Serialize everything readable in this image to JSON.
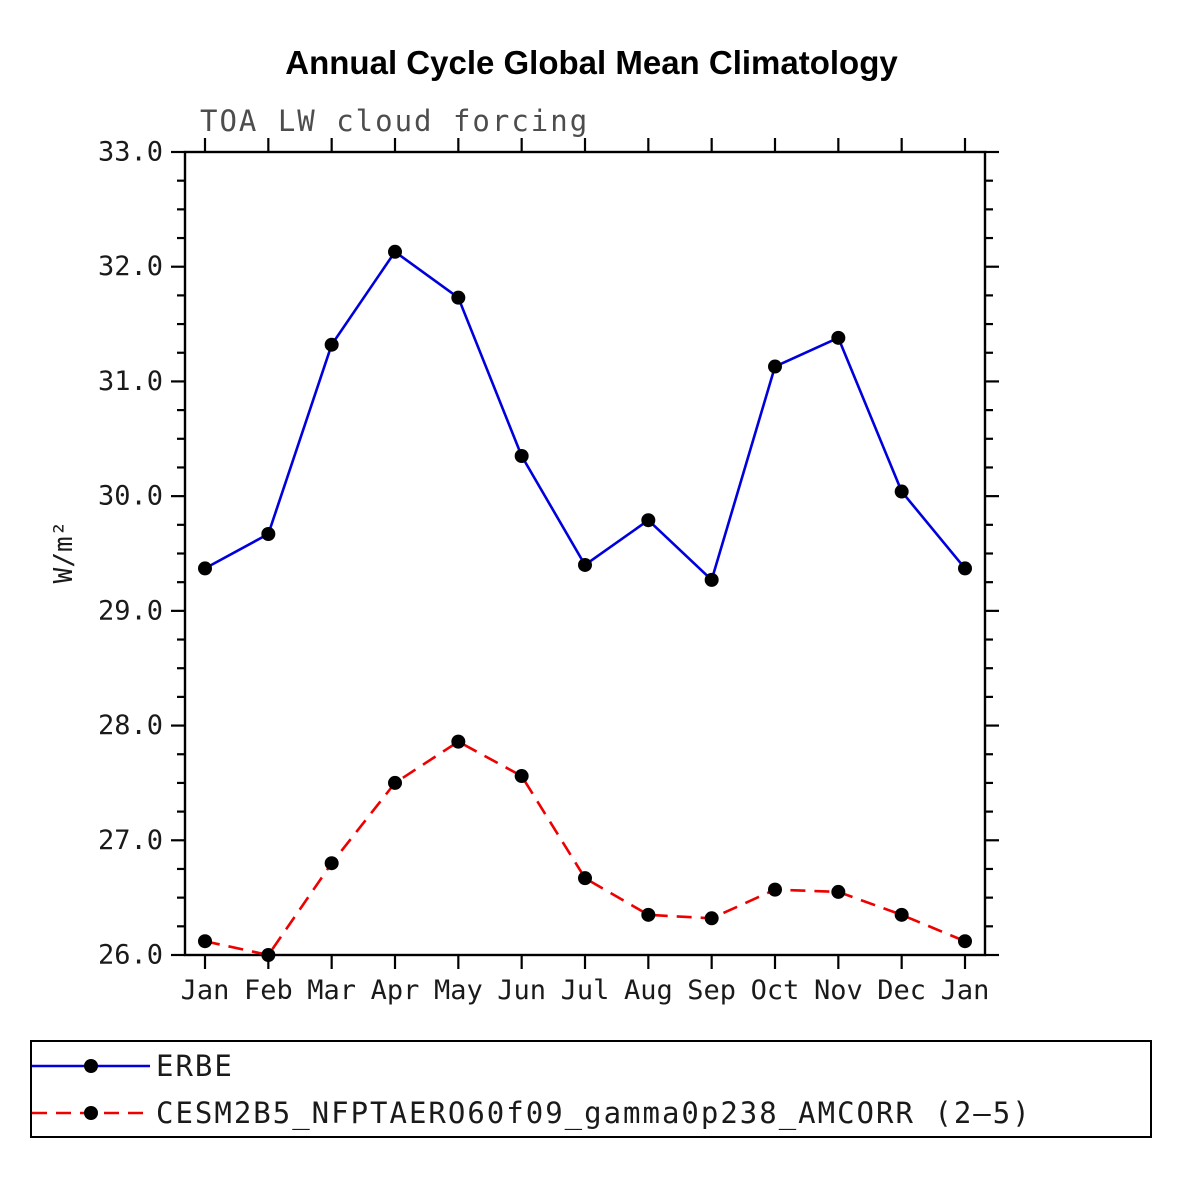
{
  "chart_data": {
    "type": "line",
    "title": "Annual Cycle Global Mean Climatology",
    "subtitle": "TOA LW cloud forcing",
    "ylabel": "W/m²",
    "categories": [
      "Jan",
      "Feb",
      "Mar",
      "Apr",
      "May",
      "Jun",
      "Jul",
      "Aug",
      "Sep",
      "Oct",
      "Nov",
      "Dec",
      "Jan"
    ],
    "ylim": [
      26.0,
      33.0
    ],
    "ytick_interval": 1.0,
    "ytick_minor_interval": 0.25,
    "ytick_labels": [
      "26.0",
      "27.0",
      "28.0",
      "29.0",
      "30.0",
      "31.0",
      "32.0",
      "33.0"
    ],
    "grid": false,
    "legend_position": "bottom",
    "frame_color": "#000000",
    "marker_color": "#000000",
    "series": [
      {
        "name": "ERBE",
        "color": "#0000dd",
        "style": "solid",
        "marker": "circle",
        "values": [
          29.37,
          29.67,
          31.32,
          32.13,
          31.73,
          30.35,
          29.4,
          29.79,
          29.27,
          31.13,
          31.38,
          30.04,
          29.37
        ]
      },
      {
        "name": "CESM2B5_NFPTAERO60f09_gamma0p238_AMCORR (2–5)",
        "color": "#ee0000",
        "style": "dashed",
        "marker": "circle",
        "values": [
          26.12,
          26.0,
          26.8,
          27.5,
          27.86,
          27.56,
          26.67,
          26.35,
          26.32,
          26.57,
          26.55,
          26.35,
          26.12
        ]
      }
    ]
  }
}
